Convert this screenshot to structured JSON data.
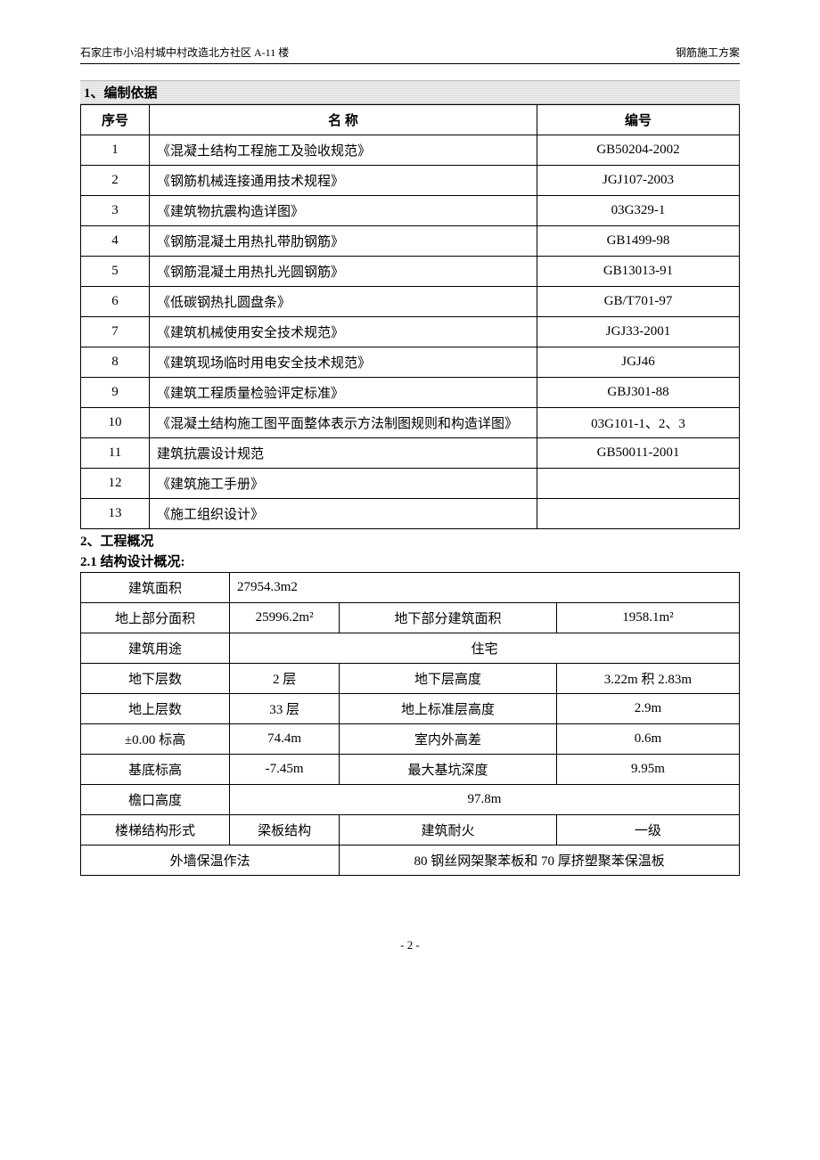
{
  "header": {
    "left": "石家庄市小沿村城中村改造北方社区 A-11 楼",
    "right": "钢筋施工方案"
  },
  "section1": {
    "title": "1、编制依据",
    "columns": {
      "seq": "序号",
      "name": "名  称",
      "code": "编号"
    },
    "rows": [
      {
        "seq": "1",
        "name": "《混凝土结构工程施工及验收规范》",
        "code": "GB50204-2002"
      },
      {
        "seq": "2",
        "name": "《钢筋机械连接通用技术规程》",
        "code": "JGJ107-2003"
      },
      {
        "seq": "3",
        "name": "《建筑物抗震构造详图》",
        "code": "03G329-1"
      },
      {
        "seq": "4",
        "name": "《钢筋混凝土用热扎带肋钢筋》",
        "code": "GB1499-98"
      },
      {
        "seq": "5",
        "name": "《钢筋混凝土用热扎光圆钢筋》",
        "code": "GB13013-91"
      },
      {
        "seq": "6",
        "name": "《低碳钢热扎圆盘条》",
        "code": "GB/T701-97"
      },
      {
        "seq": "7",
        "name": "《建筑机械使用安全技术规范》",
        "code": "JGJ33-2001"
      },
      {
        "seq": "8",
        "name": "《建筑现场临时用电安全技术规范》",
        "code": "JGJ46"
      },
      {
        "seq": "9",
        "name": "《建筑工程质量检验评定标准》",
        "code": "GBJ301-88"
      },
      {
        "seq": "10",
        "name": "《混凝土结构施工图平面整体表示方法制图规则和构造详图》",
        "code": "03G101-1、2、3"
      },
      {
        "seq": "11",
        "name": "建筑抗震设计规范",
        "code": "GB50011-2001"
      },
      {
        "seq": "12",
        "name": "《建筑施工手册》",
        "code": ""
      },
      {
        "seq": "13",
        "name": "《施工组织设计》",
        "code": ""
      }
    ]
  },
  "section2": {
    "title": "2、工程概况",
    "subtitle": "2.1 结构设计概况:",
    "rows": {
      "r1": {
        "label": "建筑面积",
        "value": "27954.3m2"
      },
      "r2": {
        "l1": "地上部分面积",
        "v1": "25996.2m²",
        "l2": "地下部分建筑面积",
        "v2": "1958.1m²"
      },
      "r3": {
        "label": "建筑用途",
        "value": "住宅"
      },
      "r4": {
        "l1": "地下层数",
        "v1": "2 层",
        "l2": "地下层高度",
        "v2": "3.22m 积 2.83m"
      },
      "r5": {
        "l1": "地上层数",
        "v1": "33 层",
        "l2": "地上标准层高度",
        "v2": "2.9m"
      },
      "r6": {
        "l1": "±0.00 标高",
        "v1": "74.4m",
        "l2": "室内外高差",
        "v2": "0.6m"
      },
      "r7": {
        "l1": "基底标高",
        "v1": "-7.45m",
        "l2": "最大基坑深度",
        "v2": "9.95m"
      },
      "r8": {
        "label": "檐口高度",
        "value": "97.8m"
      },
      "r9": {
        "l1": "楼梯结构形式",
        "v1": "梁板结构",
        "l2": "建筑耐火",
        "v2": "一级"
      },
      "r10": {
        "label": "外墙保温作法",
        "value": "80 钢丝网架聚苯板和 70 厚挤塑聚苯保温板"
      }
    }
  },
  "footer": {
    "page": "- 2 -"
  }
}
